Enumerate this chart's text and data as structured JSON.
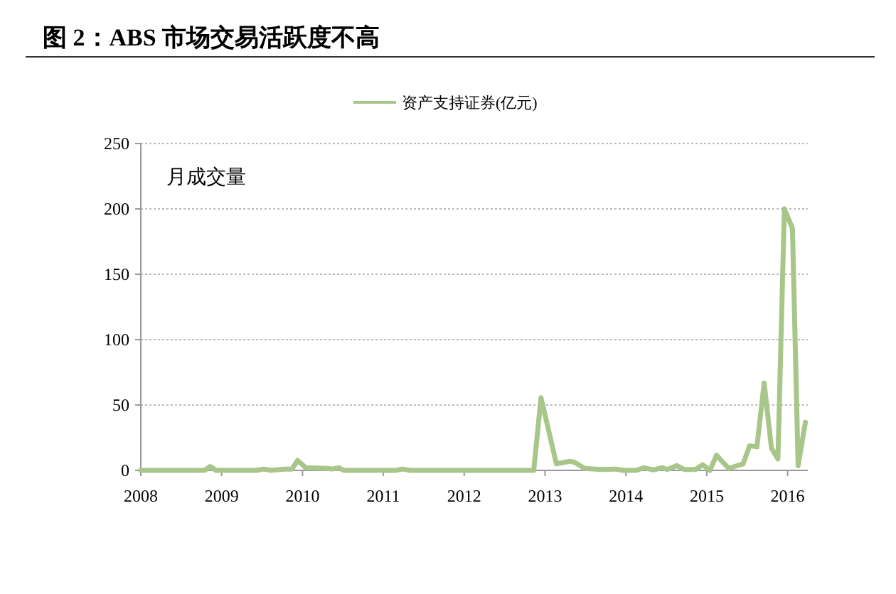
{
  "chart_data": {
    "type": "line",
    "title": "图 2：ABS 市场交易活跃度不高",
    "annotations": [
      "月成交量"
    ],
    "x": [
      2008.0,
      2008.79,
      2008.86,
      2008.93,
      2009.43,
      2009.52,
      2009.61,
      2009.78,
      2009.87,
      2009.94,
      2010.04,
      2010.31,
      2010.36,
      2010.45,
      2010.51,
      2011.15,
      2011.24,
      2011.33,
      2012.86,
      2012.95,
      2013.14,
      2013.31,
      2013.37,
      2013.49,
      2013.69,
      2013.87,
      2013.96,
      2014.13,
      2014.22,
      2014.34,
      2014.45,
      2014.51,
      2014.63,
      2014.72,
      2014.86,
      2014.95,
      2015.04,
      2015.12,
      2015.27,
      2015.45,
      2015.53,
      2015.62,
      2015.71,
      2015.8,
      2015.88,
      2015.96,
      2016.06,
      2016.13,
      2016.22
    ],
    "series": [
      {
        "name": "资产支持证券(亿元)",
        "color": "#a9c68a",
        "values": [
          0,
          0,
          3,
          0,
          0,
          1,
          0,
          1,
          1,
          7.6,
          2,
          1.5,
          1,
          2,
          0,
          0,
          1,
          0,
          0,
          55.6,
          5,
          7,
          6,
          1.5,
          0.7,
          1,
          0,
          0,
          2,
          0.4,
          2,
          0.7,
          3.6,
          0.7,
          0.7,
          4.3,
          0,
          11.6,
          1.5,
          5,
          18.8,
          18,
          66.8,
          17,
          8.7,
          200,
          185,
          3.6,
          36.8
        ]
      }
    ],
    "xlim": [
      2008,
      2016.25
    ],
    "xticks": [
      2008,
      2009,
      2010,
      2011,
      2012,
      2013,
      2014,
      2015,
      2016
    ],
    "ylim": [
      0,
      250
    ],
    "yticks": [
      0,
      50,
      100,
      150,
      200,
      250
    ],
    "grid": "y",
    "legend": "top",
    "marker": "none",
    "line_style": "solid"
  }
}
